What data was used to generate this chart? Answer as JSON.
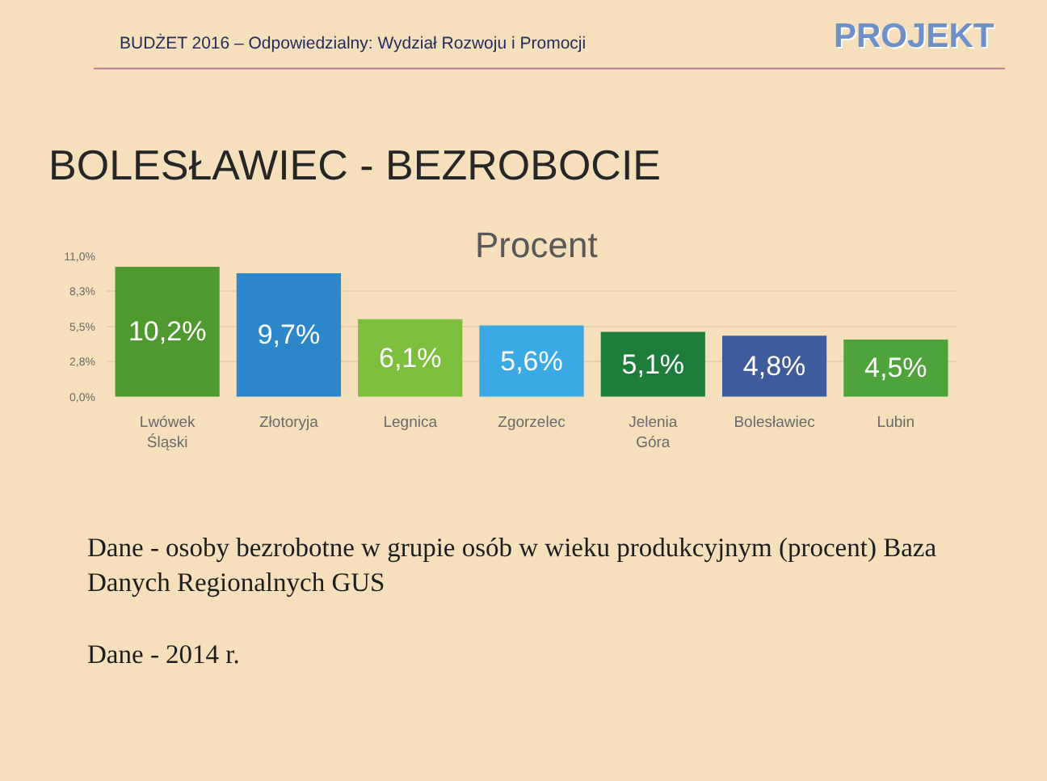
{
  "chart_data": {
    "type": "bar",
    "title": "BOLESŁAWIEC - BEZROBOCIE",
    "subtitle": "Procent",
    "categories": [
      "Lwówek Śląski",
      "Złotoryja",
      "Legnica",
      "Zgorzelec",
      "Jelenia Góra",
      "Bolesławiec",
      "Lubin"
    ],
    "values": [
      10.2,
      9.7,
      6.1,
      5.6,
      5.1,
      4.8,
      4.5
    ],
    "colors": [
      "#4f9a2f",
      "#2b87c9",
      "#7dbf3c",
      "#3aa9e4",
      "#1f7d3b",
      "#3f5b9c",
      "#4fa33b"
    ],
    "value_labels": [
      "10,2%",
      "9,7%",
      "6,1%",
      "5,6%",
      "5,1%",
      "4,8%",
      "4,5%"
    ],
    "ylim": [
      0,
      11
    ],
    "yticks": [
      {
        "value": 0,
        "label": "0,0%"
      },
      {
        "value": 2.8,
        "label": "2,8%"
      },
      {
        "value": 5.5,
        "label": "5,5%"
      },
      {
        "value": 8.3,
        "label": "8,3%"
      },
      {
        "value": 11,
        "label": "11,0%"
      }
    ],
    "grid": "y",
    "annotations": [
      "BUDŻET 2016 – Odpowiedzialny: Wydział Rozwoju i Promocji",
      "PROJEKT",
      "Dane - osoby bezrobotne w grupie osób w wieku produkcyjnym (procent) Baza Danych Regionalnych GUS",
      "Dane - 2014 r."
    ]
  }
}
